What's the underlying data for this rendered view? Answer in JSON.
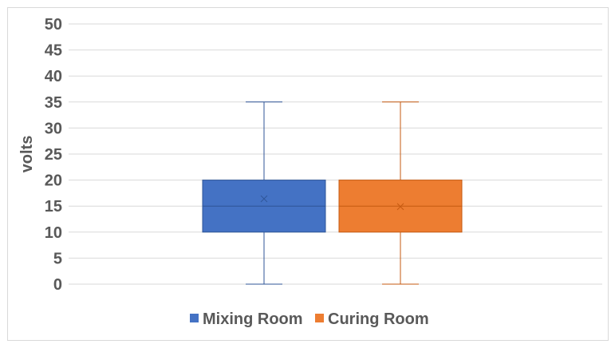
{
  "chart_data": {
    "type": "box",
    "title": "",
    "xlabel": "",
    "ylabel": "volts",
    "ylim": [
      0,
      50
    ],
    "yticks": [
      0,
      5,
      10,
      15,
      20,
      25,
      30,
      35,
      40,
      45,
      50
    ],
    "grid": true,
    "legend_position": "bottom",
    "series": [
      {
        "name": "Mixing Room",
        "color": "#4472c4",
        "min": 0,
        "q1": 10,
        "median": 15,
        "q3": 20,
        "max": 35,
        "mean": 16.4
      },
      {
        "name": "Curing Room",
        "color": "#ed7d31",
        "min": 0,
        "q1": 10,
        "median": 15,
        "q3": 20,
        "max": 35,
        "mean": 14.9
      }
    ]
  }
}
